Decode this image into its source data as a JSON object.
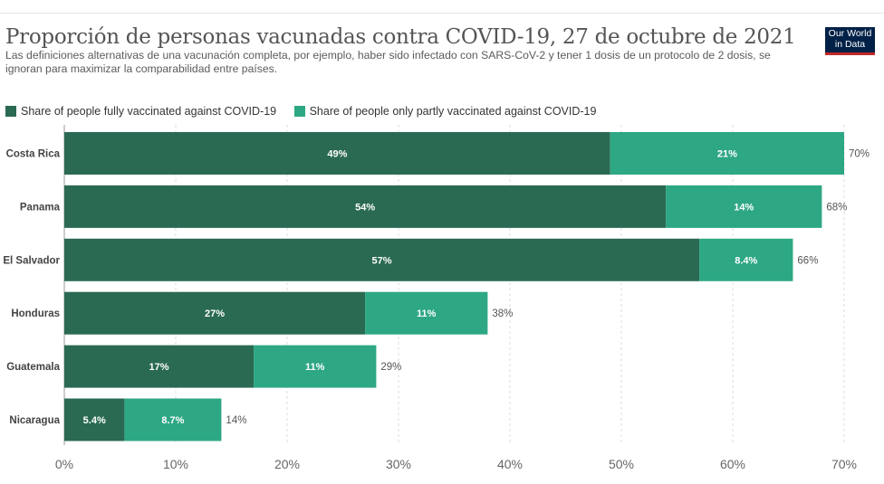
{
  "title": "Proporción de personas vacunadas contra COVID-19, 27 de octubre de 2021",
  "subtitle": "Las definiciones alternativas de una vacunación completa, por ejemplo, haber sido infectado con SARS-CoV-2 y tener 1 dosis de un protocolo de 2 dosis, se ignoran para maximizar la comparabilidad entre países.",
  "logo": {
    "line1": "Our World",
    "line2": "in Data"
  },
  "colors": {
    "fully": "#2a6a52",
    "partly": "#2ea784"
  },
  "chart_data": {
    "type": "bar",
    "orientation": "horizontal",
    "stacked": true,
    "categories": [
      "Costa Rica",
      "Panama",
      "El Salvador",
      "Honduras",
      "Guatemala",
      "Nicaragua"
    ],
    "series": [
      {
        "name": "Share of people fully vaccinated against COVID-19",
        "values": [
          49,
          54,
          57,
          27,
          17,
          5.4
        ],
        "labels": [
          "49%",
          "54%",
          "57%",
          "27%",
          "17%",
          "5.4%"
        ]
      },
      {
        "name": "Share of people only partly vaccinated against COVID-19",
        "values": [
          21,
          14,
          8.4,
          11,
          11,
          8.7
        ],
        "labels": [
          "21%",
          "14%",
          "8.4%",
          "11%",
          "11%",
          "8.7%"
        ]
      }
    ],
    "totals": [
      "70%",
      "68%",
      "66%",
      "38%",
      "29%",
      "14%"
    ],
    "xlim": [
      0,
      70
    ],
    "xticks": [
      0,
      10,
      20,
      30,
      40,
      50,
      60,
      70
    ],
    "xtick_labels": [
      "0%",
      "10%",
      "20%",
      "30%",
      "40%",
      "50%",
      "60%",
      "70%"
    ],
    "grid": true,
    "legend_position": "top-left"
  }
}
